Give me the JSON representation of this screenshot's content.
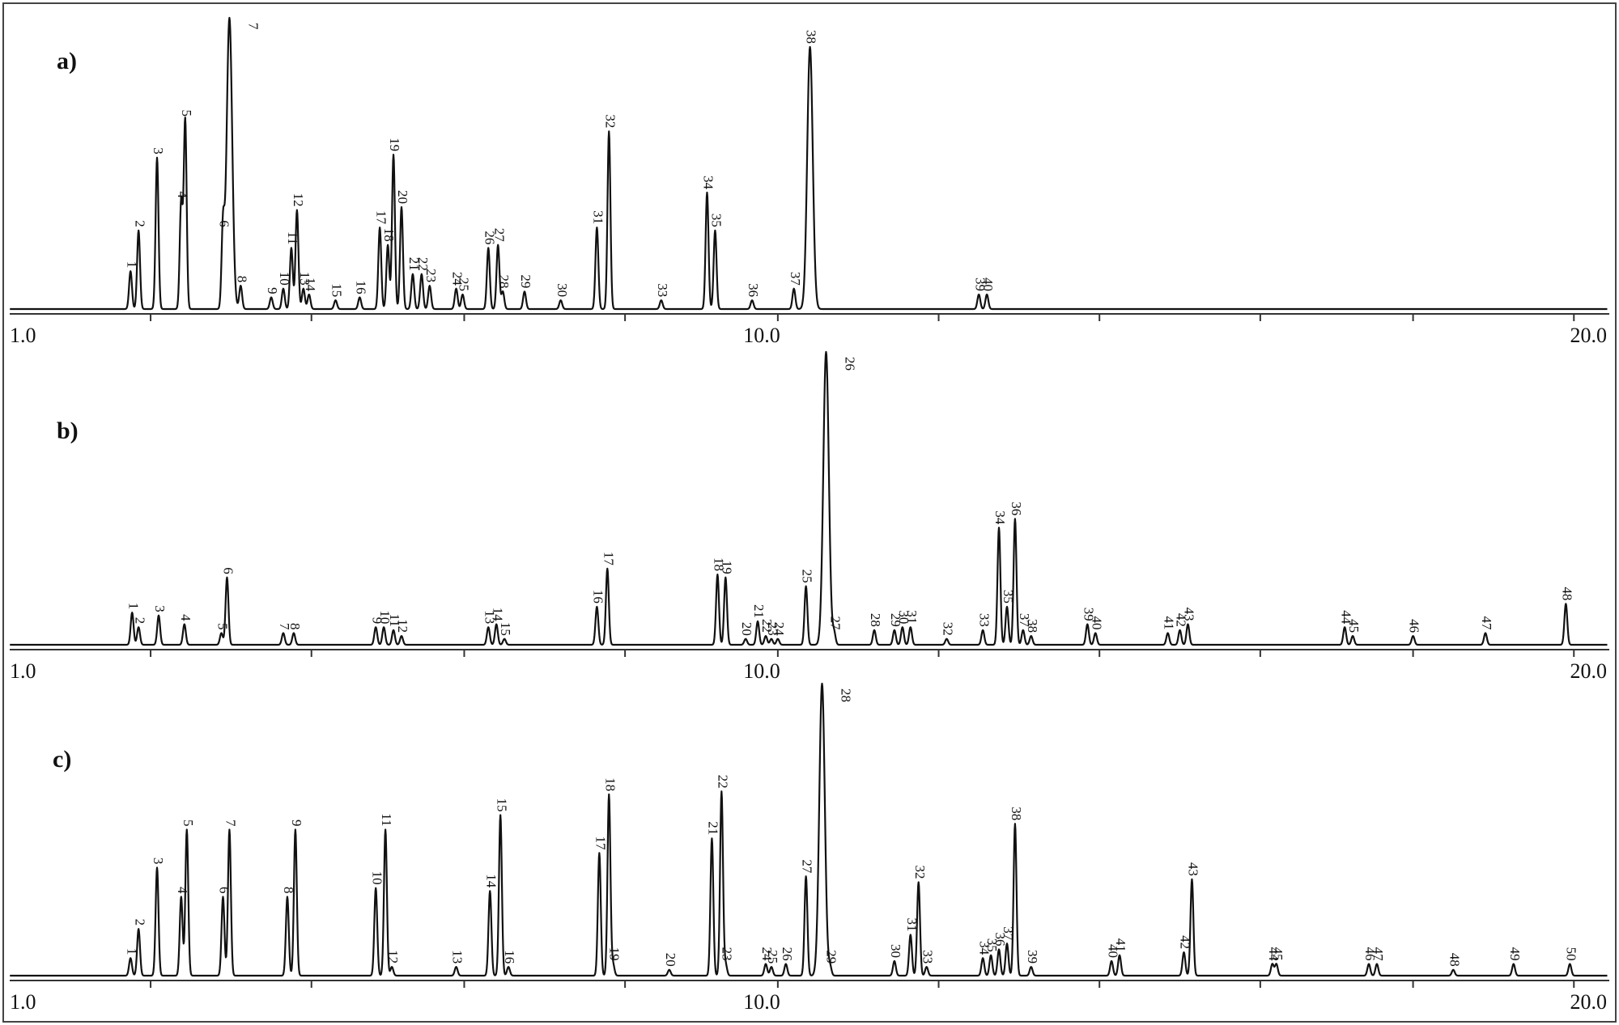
{
  "chart_data": [
    {
      "type": "line",
      "panel": "a)",
      "xlim": [
        1.0,
        20.5
      ],
      "x_tick_labels": [
        {
          "x": 1.0,
          "label": "1.0"
        },
        {
          "x": 10.0,
          "label": "10.0"
        },
        {
          "x": 20.0,
          "label": "20.0"
        }
      ],
      "x_minor_ticks": [
        2.4,
        4.4,
        6.3,
        8.3,
        10.2,
        12.2,
        14.2,
        16.2,
        18.1,
        20.1
      ],
      "peaks": [
        {
          "label": "1",
          "x": 2.15,
          "h": 0.13
        },
        {
          "label": "2",
          "x": 2.25,
          "h": 0.27
        },
        {
          "label": "3",
          "x": 2.48,
          "h": 0.52
        },
        {
          "label": "4",
          "x": 2.78,
          "h": 0.37
        },
        {
          "label": "5",
          "x": 2.83,
          "h": 0.65
        },
        {
          "label": "6",
          "x": 3.3,
          "h": 0.27
        },
        {
          "label": "7",
          "x": 3.38,
          "h": 1.0
        },
        {
          "label": "8",
          "x": 3.52,
          "h": 0.08
        },
        {
          "label": "9",
          "x": 3.9,
          "h": 0.04
        },
        {
          "label": "10",
          "x": 4.05,
          "h": 0.07
        },
        {
          "label": "11",
          "x": 4.15,
          "h": 0.21
        },
        {
          "label": "12",
          "x": 4.22,
          "h": 0.34
        },
        {
          "label": "13",
          "x": 4.3,
          "h": 0.07
        },
        {
          "label": "14",
          "x": 4.37,
          "h": 0.05
        },
        {
          "label": "15",
          "x": 4.7,
          "h": 0.03
        },
        {
          "label": "16",
          "x": 5.0,
          "h": 0.04
        },
        {
          "label": "17",
          "x": 5.25,
          "h": 0.28
        },
        {
          "label": "18",
          "x": 5.35,
          "h": 0.22
        },
        {
          "label": "19",
          "x": 5.42,
          "h": 0.53
        },
        {
          "label": "20",
          "x": 5.52,
          "h": 0.35
        },
        {
          "label": "21",
          "x": 5.66,
          "h": 0.12
        },
        {
          "label": "22",
          "x": 5.77,
          "h": 0.12
        },
        {
          "label": "23",
          "x": 5.87,
          "h": 0.08
        },
        {
          "label": "24",
          "x": 6.2,
          "h": 0.07
        },
        {
          "label": "25",
          "x": 6.28,
          "h": 0.05
        },
        {
          "label": "26",
          "x": 6.6,
          "h": 0.21
        },
        {
          "label": "27",
          "x": 6.72,
          "h": 0.22
        },
        {
          "label": "28",
          "x": 6.78,
          "h": 0.06
        },
        {
          "label": "29",
          "x": 7.05,
          "h": 0.06
        },
        {
          "label": "30",
          "x": 7.5,
          "h": 0.03
        },
        {
          "label": "31",
          "x": 7.95,
          "h": 0.28
        },
        {
          "label": "32",
          "x": 8.1,
          "h": 0.61
        },
        {
          "label": "33",
          "x": 8.75,
          "h": 0.03
        },
        {
          "label": "34",
          "x": 9.32,
          "h": 0.4
        },
        {
          "label": "35",
          "x": 9.42,
          "h": 0.27
        },
        {
          "label": "36",
          "x": 9.88,
          "h": 0.03
        },
        {
          "label": "37",
          "x": 10.4,
          "h": 0.07
        },
        {
          "label": "38",
          "x": 10.6,
          "h": 0.9
        },
        {
          "label": "39",
          "x": 12.7,
          "h": 0.05
        },
        {
          "label": "40",
          "x": 12.8,
          "h": 0.05
        }
      ]
    },
    {
      "type": "line",
      "panel": "b)",
      "xlim": [
        1.0,
        20.5
      ],
      "x_tick_labels": [
        {
          "x": 1.0,
          "label": "1.0"
        },
        {
          "x": 10.0,
          "label": "10.0"
        },
        {
          "x": 20.0,
          "label": "20.0"
        }
      ],
      "x_minor_ticks": [
        2.4,
        4.4,
        6.3,
        8.3,
        10.2,
        12.2,
        14.2,
        16.2,
        18.1,
        20.1
      ],
      "peaks": [
        {
          "label": "1",
          "x": 2.17,
          "h": 0.11
        },
        {
          "label": "2",
          "x": 2.25,
          "h": 0.06
        },
        {
          "label": "3",
          "x": 2.5,
          "h": 0.1
        },
        {
          "label": "4",
          "x": 2.82,
          "h": 0.07
        },
        {
          "label": "5",
          "x": 3.28,
          "h": 0.04
        },
        {
          "label": "6",
          "x": 3.35,
          "h": 0.23
        },
        {
          "label": "7",
          "x": 4.05,
          "h": 0.04
        },
        {
          "label": "8",
          "x": 4.18,
          "h": 0.04
        },
        {
          "label": "9",
          "x": 5.2,
          "h": 0.06
        },
        {
          "label": "10",
          "x": 5.3,
          "h": 0.06
        },
        {
          "label": "11",
          "x": 5.42,
          "h": 0.05
        },
        {
          "label": "12",
          "x": 5.52,
          "h": 0.03
        },
        {
          "label": "13",
          "x": 6.6,
          "h": 0.06
        },
        {
          "label": "14",
          "x": 6.7,
          "h": 0.07
        },
        {
          "label": "15",
          "x": 6.8,
          "h": 0.02
        },
        {
          "label": "16",
          "x": 7.95,
          "h": 0.13
        },
        {
          "label": "17",
          "x": 8.08,
          "h": 0.26
        },
        {
          "label": "18",
          "x": 9.45,
          "h": 0.24
        },
        {
          "label": "19",
          "x": 9.55,
          "h": 0.23
        },
        {
          "label": "20",
          "x": 9.8,
          "h": 0.02
        },
        {
          "label": "21",
          "x": 9.95,
          "h": 0.08
        },
        {
          "label": "22",
          "x": 10.05,
          "h": 0.03
        },
        {
          "label": "23",
          "x": 10.12,
          "h": 0.02
        },
        {
          "label": "24",
          "x": 10.2,
          "h": 0.02
        },
        {
          "label": "25",
          "x": 10.55,
          "h": 0.2
        },
        {
          "label": "26",
          "x": 10.8,
          "h": 1.0
        },
        {
          "label": "27",
          "x": 10.9,
          "h": 0.04
        },
        {
          "label": "28",
          "x": 11.4,
          "h": 0.05
        },
        {
          "label": "29",
          "x": 11.65,
          "h": 0.05
        },
        {
          "label": "30",
          "x": 11.75,
          "h": 0.06
        },
        {
          "label": "31",
          "x": 11.85,
          "h": 0.06
        },
        {
          "label": "32",
          "x": 12.3,
          "h": 0.02
        },
        {
          "label": "33",
          "x": 12.75,
          "h": 0.05
        },
        {
          "label": "34",
          "x": 12.95,
          "h": 0.4
        },
        {
          "label": "35",
          "x": 13.05,
          "h": 0.13
        },
        {
          "label": "36",
          "x": 13.15,
          "h": 0.43
        },
        {
          "label": "37",
          "x": 13.25,
          "h": 0.05
        },
        {
          "label": "38",
          "x": 13.35,
          "h": 0.03
        },
        {
          "label": "39",
          "x": 14.05,
          "h": 0.07
        },
        {
          "label": "40",
          "x": 14.15,
          "h": 0.04
        },
        {
          "label": "41",
          "x": 15.05,
          "h": 0.04
        },
        {
          "label": "42",
          "x": 15.2,
          "h": 0.05
        },
        {
          "label": "43",
          "x": 15.3,
          "h": 0.07
        },
        {
          "label": "44",
          "x": 17.25,
          "h": 0.06
        },
        {
          "label": "45",
          "x": 17.35,
          "h": 0.03
        },
        {
          "label": "46",
          "x": 18.1,
          "h": 0.03
        },
        {
          "label": "47",
          "x": 19.0,
          "h": 0.04
        },
        {
          "label": "48",
          "x": 20.0,
          "h": 0.14
        }
      ]
    },
    {
      "type": "line",
      "panel": "c)",
      "xlim": [
        1.0,
        20.5
      ],
      "x_tick_labels": [
        {
          "x": 1.0,
          "label": "1.0"
        },
        {
          "x": 10.0,
          "label": "10.0"
        },
        {
          "x": 20.0,
          "label": "20.0"
        }
      ],
      "x_minor_ticks": [
        2.4,
        4.4,
        6.3,
        8.3,
        10.2,
        12.2,
        14.2,
        16.2,
        18.1,
        20.1
      ],
      "peaks": [
        {
          "label": "1",
          "x": 2.15,
          "h": 0.06
        },
        {
          "label": "2",
          "x": 2.25,
          "h": 0.16
        },
        {
          "label": "3",
          "x": 2.48,
          "h": 0.37
        },
        {
          "label": "4",
          "x": 2.78,
          "h": 0.27
        },
        {
          "label": "5",
          "x": 2.85,
          "h": 0.5
        },
        {
          "label": "6",
          "x": 3.3,
          "h": 0.27
        },
        {
          "label": "7",
          "x": 3.38,
          "h": 0.5
        },
        {
          "label": "8",
          "x": 4.1,
          "h": 0.27
        },
        {
          "label": "9",
          "x": 4.2,
          "h": 0.5
        },
        {
          "label": "10",
          "x": 5.2,
          "h": 0.3
        },
        {
          "label": "11",
          "x": 5.32,
          "h": 0.5
        },
        {
          "label": "12",
          "x": 5.4,
          "h": 0.03
        },
        {
          "label": "13",
          "x": 6.2,
          "h": 0.03
        },
        {
          "label": "14",
          "x": 6.62,
          "h": 0.29
        },
        {
          "label": "15",
          "x": 6.75,
          "h": 0.55
        },
        {
          "label": "16",
          "x": 6.85,
          "h": 0.03
        },
        {
          "label": "17",
          "x": 7.98,
          "h": 0.42
        },
        {
          "label": "18",
          "x": 8.1,
          "h": 0.62
        },
        {
          "label": "19",
          "x": 8.15,
          "h": 0.04
        },
        {
          "label": "20",
          "x": 8.85,
          "h": 0.02
        },
        {
          "label": "21",
          "x": 9.38,
          "h": 0.47
        },
        {
          "label": "22",
          "x": 9.5,
          "h": 0.63
        },
        {
          "label": "23",
          "x": 9.55,
          "h": 0.04
        },
        {
          "label": "24",
          "x": 10.05,
          "h": 0.04
        },
        {
          "label": "25",
          "x": 10.12,
          "h": 0.03
        },
        {
          "label": "26",
          "x": 10.3,
          "h": 0.04
        },
        {
          "label": "27",
          "x": 10.55,
          "h": 0.34
        },
        {
          "label": "28",
          "x": 10.75,
          "h": 1.0
        },
        {
          "label": "29",
          "x": 10.85,
          "h": 0.03
        },
        {
          "label": "30",
          "x": 11.65,
          "h": 0.05
        },
        {
          "label": "31",
          "x": 11.85,
          "h": 0.14
        },
        {
          "label": "32",
          "x": 11.95,
          "h": 0.32
        },
        {
          "label": "33",
          "x": 12.05,
          "h": 0.03
        },
        {
          "label": "34",
          "x": 12.75,
          "h": 0.06
        },
        {
          "label": "35",
          "x": 12.85,
          "h": 0.07
        },
        {
          "label": "36",
          "x": 12.95,
          "h": 0.09
        },
        {
          "label": "37",
          "x": 13.05,
          "h": 0.11
        },
        {
          "label": "38",
          "x": 13.15,
          "h": 0.52
        },
        {
          "label": "39",
          "x": 13.35,
          "h": 0.03
        },
        {
          "label": "40",
          "x": 14.35,
          "h": 0.05
        },
        {
          "label": "41",
          "x": 14.45,
          "h": 0.07
        },
        {
          "label": "42",
          "x": 15.25,
          "h": 0.08
        },
        {
          "label": "43",
          "x": 15.35,
          "h": 0.33
        },
        {
          "label": "44",
          "x": 16.35,
          "h": 0.04
        },
        {
          "label": "45",
          "x": 16.4,
          "h": 0.04
        },
        {
          "label": "46",
          "x": 17.55,
          "h": 0.04
        },
        {
          "label": "47",
          "x": 17.65,
          "h": 0.04
        },
        {
          "label": "48",
          "x": 18.6,
          "h": 0.02
        },
        {
          "label": "49",
          "x": 19.35,
          "h": 0.04
        },
        {
          "label": "50",
          "x": 20.05,
          "h": 0.04
        }
      ]
    }
  ]
}
